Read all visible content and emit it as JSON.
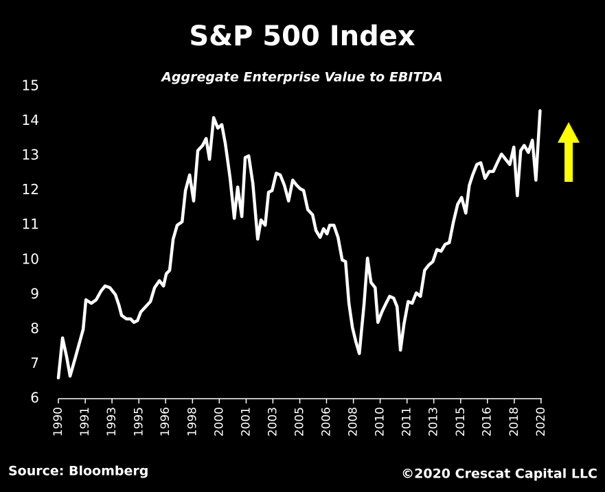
{
  "chart_data": {
    "type": "line",
    "title": "S&P 500 Index",
    "subtitle": "Aggregate Enterprise Value to EBITDA",
    "source": "Source: Bloomberg",
    "copyright": "©2020 Crescat Capital LLC",
    "x": [
      1990.0,
      1990.26,
      1990.52,
      1990.73,
      1991.07,
      1991.37,
      1991.55,
      1991.72,
      1992.06,
      1992.36,
      1992.66,
      1992.92,
      1993.22,
      1993.56,
      1993.78,
      1993.95,
      1994.25,
      1994.51,
      1994.72,
      1994.94,
      1995.15,
      1995.45,
      1995.75,
      1996.01,
      1996.31,
      1996.57,
      1996.74,
      1996.95,
      1997.17,
      1997.42,
      1997.73,
      1997.94,
      1998.2,
      1998.45,
      1998.71,
      1999.01,
      1999.23,
      1999.44,
      1999.7,
      1999.96,
      2000.21,
      2000.43,
      2000.73,
      2000.99,
      2001.2,
      2001.46,
      2001.67,
      2001.89,
      2002.15,
      2002.45,
      2002.66,
      2002.92,
      2003.13,
      2003.35,
      2003.61,
      2003.86,
      2004.12,
      2004.38,
      2004.64,
      2004.89,
      2005.11,
      2005.32,
      2005.58,
      2005.88,
      2006.09,
      2006.35,
      2006.57,
      2006.78,
      2006.95,
      2007.21,
      2007.47,
      2007.73,
      2007.94,
      2008.15,
      2008.37,
      2008.58,
      2008.8,
      2009.1,
      2009.31,
      2009.53,
      2009.79,
      2009.96,
      2010.21,
      2010.47,
      2010.69,
      2010.94,
      2011.16,
      2011.37,
      2011.59,
      2011.85,
      2012.1,
      2012.36,
      2012.62,
      2012.88,
      2013.13,
      2013.39,
      2013.65,
      2013.91,
      2014.16,
      2014.42,
      2014.68,
      2014.94,
      2015.19,
      2015.45,
      2015.67,
      2015.88,
      2016.14,
      2016.39,
      2016.65,
      2016.91,
      2017.17,
      2017.42,
      2017.68,
      2017.94,
      2018.2,
      2018.45,
      2018.67,
      2018.88,
      2019.1,
      2019.36,
      2019.61,
      2019.83,
      2020.09
    ],
    "series": [
      {
        "name": "EV/EBITDA",
        "color": "#ffffff",
        "values": [
          6.6,
          7.75,
          7.2,
          6.65,
          7.2,
          7.7,
          8.0,
          8.85,
          8.75,
          8.85,
          9.1,
          9.25,
          9.2,
          9.0,
          8.7,
          8.4,
          8.3,
          8.3,
          8.2,
          8.25,
          8.5,
          8.65,
          8.8,
          9.2,
          9.4,
          9.25,
          9.6,
          9.7,
          10.6,
          11.0,
          11.1,
          12.0,
          12.45,
          11.7,
          13.15,
          13.3,
          13.5,
          12.9,
          14.1,
          13.8,
          13.9,
          13.35,
          12.35,
          11.2,
          12.1,
          11.25,
          12.95,
          13.0,
          12.2,
          10.6,
          11.15,
          11.0,
          11.95,
          12.0,
          12.5,
          12.45,
          12.15,
          11.7,
          12.3,
          12.15,
          12.05,
          12.0,
          11.45,
          11.3,
          10.85,
          10.65,
          10.9,
          10.75,
          11.0,
          11.0,
          10.65,
          10.0,
          9.95,
          8.75,
          8.05,
          7.65,
          7.3,
          8.75,
          10.05,
          9.35,
          9.2,
          8.2,
          8.5,
          8.75,
          8.95,
          8.9,
          8.65,
          7.4,
          8.15,
          8.8,
          8.75,
          9.05,
          8.95,
          9.7,
          9.85,
          9.95,
          10.3,
          10.25,
          10.45,
          10.5,
          11.1,
          11.6,
          11.8,
          11.35,
          12.15,
          12.45,
          12.75,
          12.8,
          12.35,
          12.55,
          12.55,
          12.8,
          13.05,
          12.9,
          12.75,
          13.25,
          11.85,
          13.15,
          13.3,
          13.1,
          13.45,
          12.3,
          14.3
        ]
      }
    ],
    "xlim": [
      1990,
      2020.2
    ],
    "xticks": [
      {
        "value": 1990,
        "label": "1990"
      },
      {
        "value": 1991.68,
        "label": "1991"
      },
      {
        "value": 1993.35,
        "label": "1993"
      },
      {
        "value": 1995.03,
        "label": "1995"
      },
      {
        "value": 1996.7,
        "label": "1996"
      },
      {
        "value": 1998.38,
        "label": "1998"
      },
      {
        "value": 2000.05,
        "label": "2000"
      },
      {
        "value": 2001.73,
        "label": "2001"
      },
      {
        "value": 2003.4,
        "label": "2003"
      },
      {
        "value": 2005.08,
        "label": "2005"
      },
      {
        "value": 2006.75,
        "label": "2006"
      },
      {
        "value": 2008.43,
        "label": "2008"
      },
      {
        "value": 2010.1,
        "label": "2010"
      },
      {
        "value": 2011.78,
        "label": "2011"
      },
      {
        "value": 2013.45,
        "label": "2013"
      },
      {
        "value": 2015.13,
        "label": "2015"
      },
      {
        "value": 2016.8,
        "label": "2016"
      },
      {
        "value": 2018.48,
        "label": "2018"
      },
      {
        "value": 2020.15,
        "label": "2020"
      }
    ],
    "ylim": [
      6,
      15
    ],
    "yticks": [
      6,
      7,
      8,
      9,
      10,
      11,
      12,
      13,
      14,
      15
    ],
    "grid": false
  }
}
